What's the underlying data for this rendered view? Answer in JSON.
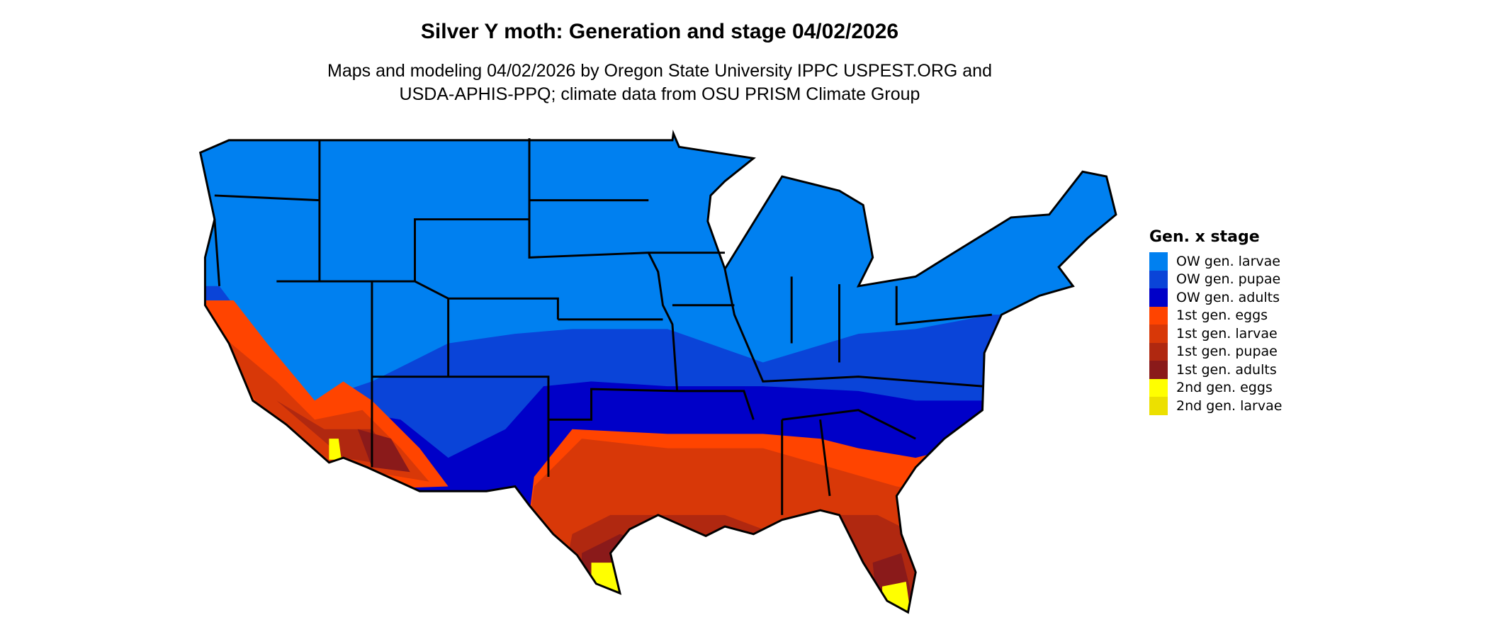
{
  "title": "Silver Y moth: Generation and stage 04/02/2026",
  "subtitle_lines": [
    "Maps and modeling 04/02/2026 by Oregon State University IPPC USPEST.ORG and",
    "USDA-APHIS-PPQ; climate data from OSU PRISM Climate Group"
  ],
  "map": {
    "region": "Contiguous United States",
    "boundaries": "state borders",
    "background_color": "#ffffff"
  },
  "legend": {
    "title": "Gen. x stage",
    "items": [
      {
        "label": "OW gen. larvae",
        "color": "#0080f0"
      },
      {
        "label": "OW gen. pupae",
        "color": "#0a44d8"
      },
      {
        "label": "OW gen. adults",
        "color": "#0000c8"
      },
      {
        "label": "1st gen. eggs",
        "color": "#ff4400"
      },
      {
        "label": "1st gen. larvae",
        "color": "#d83808"
      },
      {
        "label": "1st gen. pupae",
        "color": "#b02810"
      },
      {
        "label": "1st gen. adults",
        "color": "#8a1a1a"
      },
      {
        "label": "2nd gen. eggs",
        "color": "#ffff00"
      },
      {
        "label": "2nd gen. larvae",
        "color": "#ece000"
      }
    ]
  }
}
